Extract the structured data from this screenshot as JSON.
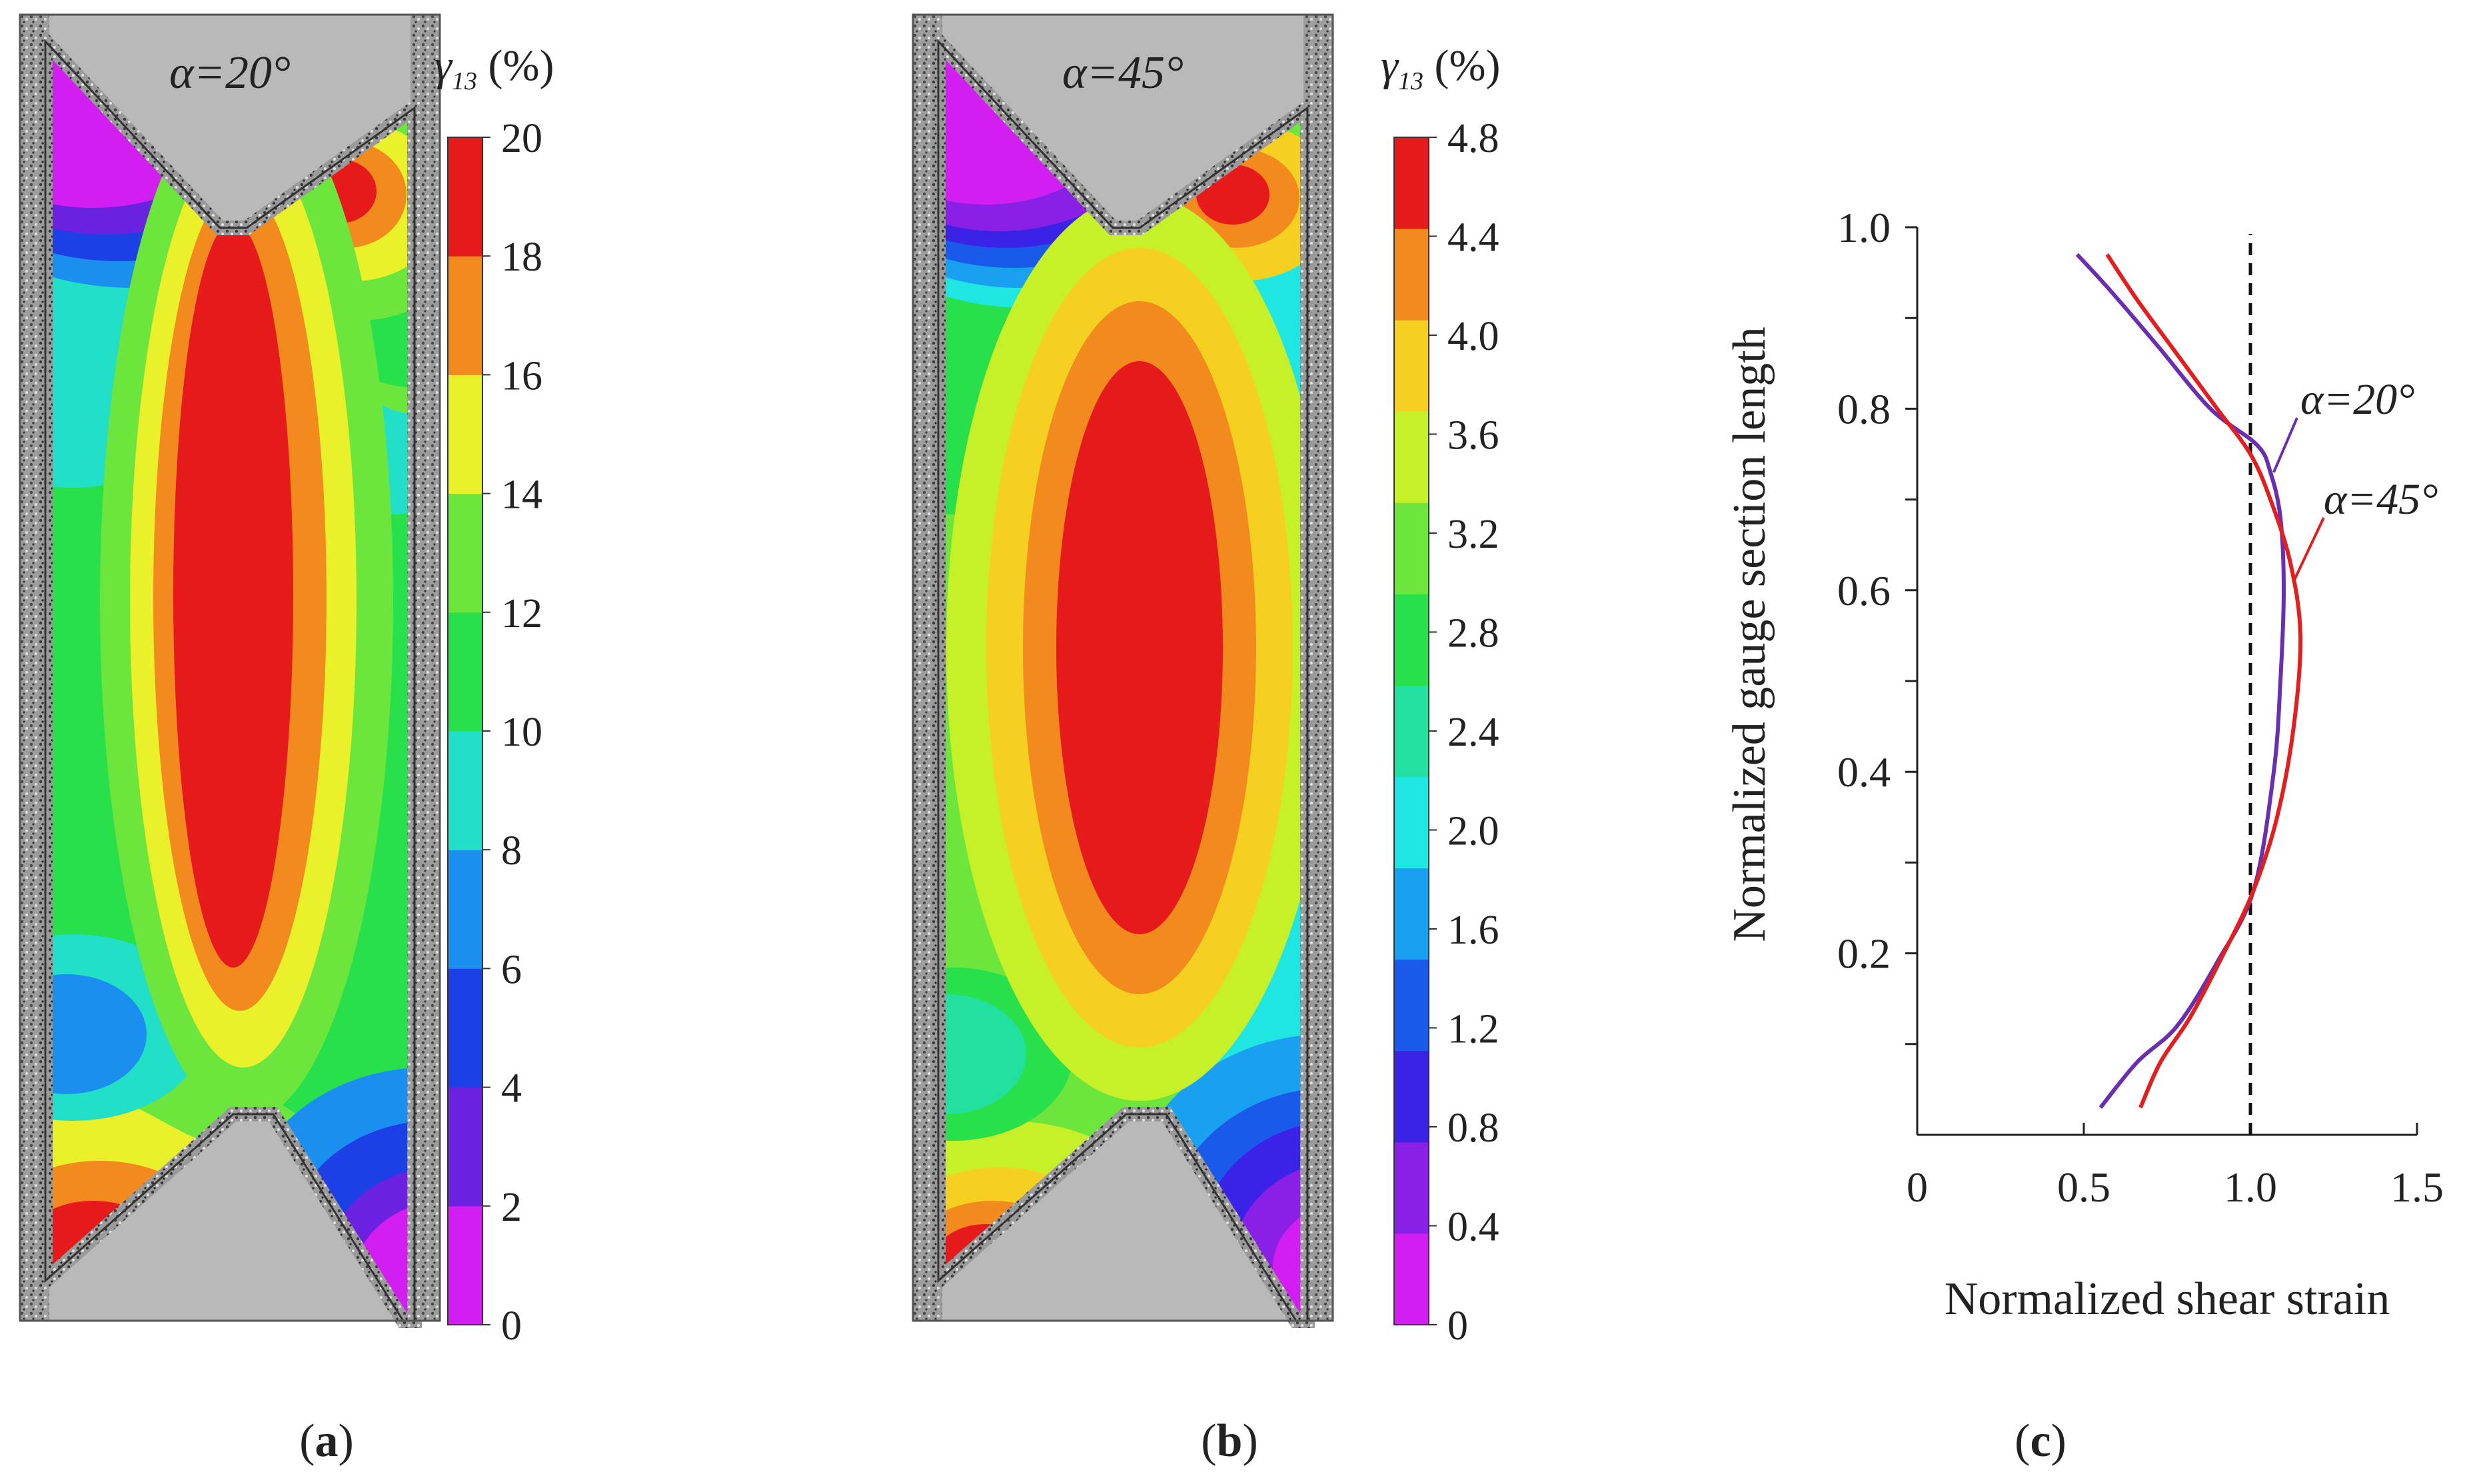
{
  "panels": {
    "a": {
      "label_open": "(",
      "label_letter": "a",
      "label_close": ")",
      "angle_label": "α=20°",
      "angle_color": "#7a3cc2"
    },
    "b": {
      "label_open": "(",
      "label_letter": "b",
      "label_close": ")",
      "angle_label": "α=45°",
      "angle_color": "#e01818"
    },
    "c": {
      "label_open": "(",
      "label_letter": "c",
      "label_close": ")"
    }
  },
  "colorbars": [
    {
      "id": "a",
      "title_symbol": "γ",
      "title_sub": "13",
      "title_unit": " (%)",
      "ticks": [
        "0",
        "2",
        "4",
        "6",
        "8",
        "10",
        "12",
        "14",
        "16",
        "18",
        "20"
      ]
    },
    {
      "id": "b",
      "title_symbol": "γ",
      "title_sub": "13",
      "title_unit": " (%)",
      "ticks": [
        "0",
        "0.4",
        "0.8",
        "1.2",
        "1.6",
        "2.0",
        "2.4",
        "2.8",
        "3.2",
        "3.6",
        "4.0",
        "4.4",
        "4.8"
      ]
    }
  ],
  "colors": {
    "scale10": [
      "#d21ef0",
      "#6a22e0",
      "#1d3fe6",
      "#1a8ff0",
      "#22e0c8",
      "#28e04c",
      "#6ce63c",
      "#eaf02a",
      "#f28a1e",
      "#e61a1a"
    ],
    "scale12": [
      "#d21ef0",
      "#8a20e6",
      "#3a22e6",
      "#1a5aea",
      "#1aa0f0",
      "#20e6e2",
      "#22e0a0",
      "#28e04c",
      "#6ce63c",
      "#c6f028",
      "#f6d020",
      "#f28a1e",
      "#e61a1a"
    ],
    "grip": "#b9b9b9"
  },
  "chart_data": {
    "type": "line",
    "title": "",
    "xlabel": "Normalized shear strain",
    "ylabel": "Normalized gauge section length",
    "xlim": [
      0,
      1.5
    ],
    "ylim": [
      0,
      1.0
    ],
    "x_ticks": [
      "0",
      "0.5",
      "1.0",
      "1.5"
    ],
    "y_ticks": [
      "0.2",
      "0.4",
      "0.6",
      "0.8",
      "1.0"
    ],
    "reference_line_x": 1.0,
    "series": [
      {
        "name": "α=20°",
        "color": "#6a2fb0",
        "x": [
          0.48,
          0.58,
          0.72,
          0.88,
          1.02,
          1.06,
          1.09,
          1.1,
          1.09,
          1.07,
          1.01,
          0.9,
          0.78,
          0.66,
          0.55
        ],
        "y": [
          0.97,
          0.93,
          0.87,
          0.8,
          0.76,
          0.73,
          0.68,
          0.6,
          0.5,
          0.4,
          0.27,
          0.19,
          0.12,
          0.08,
          0.03
        ]
      },
      {
        "name": "α=45°",
        "color": "#e41e1e",
        "x": [
          0.57,
          0.66,
          0.78,
          0.9,
          1.0,
          1.06,
          1.12,
          1.15,
          1.13,
          1.08,
          1.01,
          0.92,
          0.82,
          0.73,
          0.67
        ],
        "y": [
          0.97,
          0.92,
          0.86,
          0.8,
          0.75,
          0.7,
          0.63,
          0.55,
          0.45,
          0.35,
          0.27,
          0.2,
          0.13,
          0.08,
          0.03
        ]
      }
    ]
  }
}
